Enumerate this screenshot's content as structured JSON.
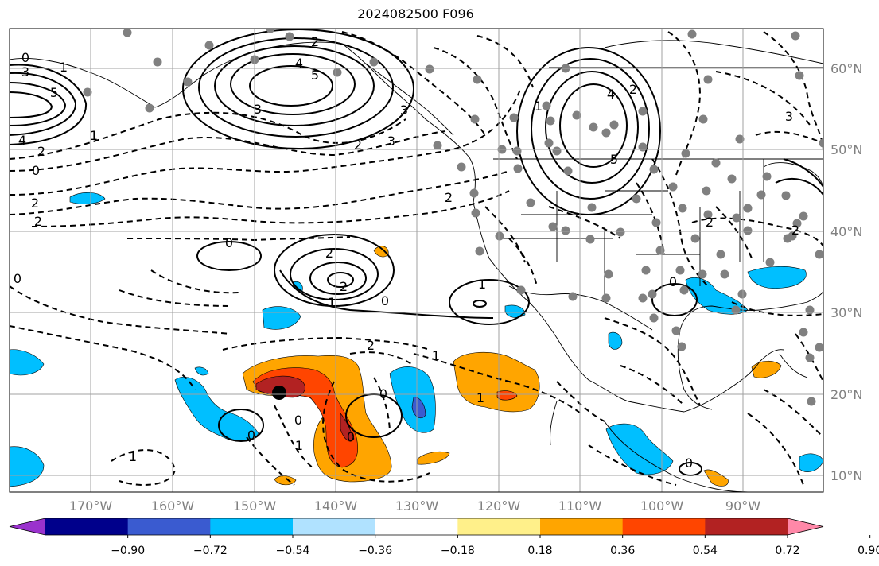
{
  "title": "2024082500 F096",
  "map": {
    "lat_labels": [
      "60°N",
      "50°N",
      "40°N",
      "30°N",
      "20°N",
      "10°N"
    ],
    "lon_labels": [
      "170°W",
      "160°W",
      "150°W",
      "140°W",
      "130°W",
      "120°W",
      "110°W",
      "100°W",
      "90°W"
    ],
    "grid_color": "#a0a0a0",
    "axis_label_color": "#808080",
    "marker": "storm-center-dot"
  },
  "colorbar": {
    "tick_labels": [
      "−0.90",
      "−0.72",
      "−0.54",
      "−0.36",
      "−0.18",
      "0.18",
      "0.36",
      "0.54",
      "0.72",
      "0.90"
    ],
    "colors": [
      "#9a32cd",
      "#00008b",
      "#3a5bd0",
      "#00bfff",
      "#b0e2ff",
      "#ffffff",
      "#fff08a",
      "#ffa500",
      "#ff4500",
      "#b22222",
      "#ff88a8"
    ]
  },
  "contour_labels": [
    {
      "text": "0"
    },
    {
      "text": "1"
    },
    {
      "text": "3"
    },
    {
      "text": "5"
    },
    {
      "text": "4"
    },
    {
      "text": "2"
    },
    {
      "text": "2"
    },
    {
      "text": "0"
    },
    {
      "text": "2"
    },
    {
      "text": "1"
    },
    {
      "text": "2"
    },
    {
      "text": "4"
    },
    {
      "text": "5"
    },
    {
      "text": "3"
    },
    {
      "text": "3"
    },
    {
      "text": "2"
    },
    {
      "text": "2"
    },
    {
      "text": "3"
    },
    {
      "text": "4"
    },
    {
      "text": "5"
    },
    {
      "text": "2"
    },
    {
      "text": "1"
    },
    {
      "text": "0"
    },
    {
      "text": "2"
    },
    {
      "text": "2"
    },
    {
      "text": "1"
    },
    {
      "text": "0"
    },
    {
      "text": "0"
    },
    {
      "text": "1"
    },
    {
      "text": "0"
    },
    {
      "text": "1"
    },
    {
      "text": "2"
    },
    {
      "text": "1"
    },
    {
      "text": "0"
    },
    {
      "text": "0"
    },
    {
      "text": "1"
    },
    {
      "text": "0"
    },
    {
      "text": "2"
    },
    {
      "text": "2"
    },
    {
      "text": "0"
    },
    {
      "text": "1"
    },
    {
      "text": "0"
    },
    {
      "text": "3"
    }
  ]
}
